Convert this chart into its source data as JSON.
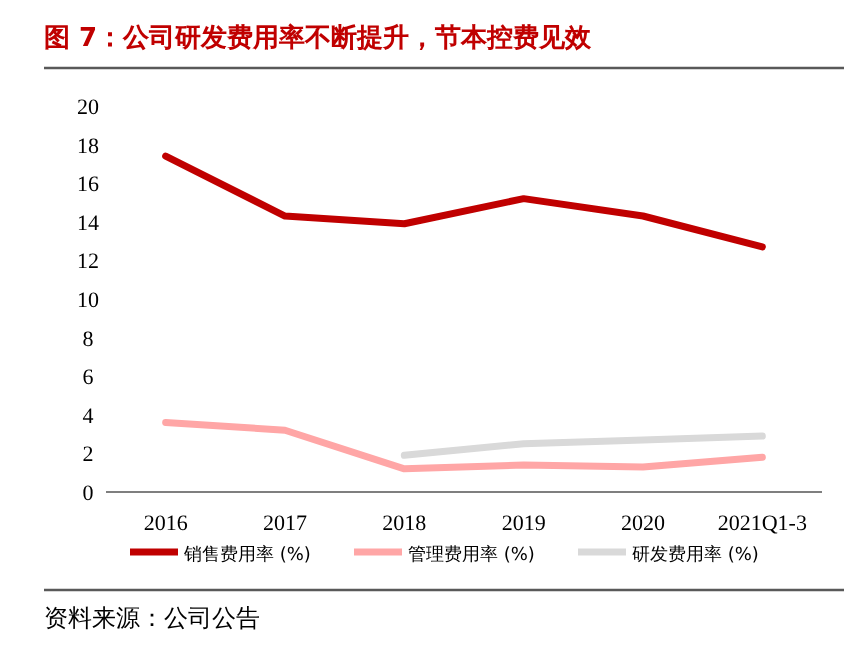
{
  "chart_data": {
    "type": "line",
    "title": "图 7：公司研发费用率不断提升，节本控费见效",
    "categories": [
      "2016",
      "2017",
      "2018",
      "2019",
      "2020",
      "2021Q1-3"
    ],
    "series": [
      {
        "name": "销售费用率 (%)",
        "color": "#c00000",
        "values": [
          17.4,
          14.3,
          13.9,
          15.2,
          14.3,
          12.7
        ]
      },
      {
        "name": "管理费用率 (%)",
        "color": "#ffa6a6",
        "values": [
          3.6,
          3.2,
          1.2,
          1.4,
          1.3,
          1.8
        ]
      },
      {
        "name": "研发费用率 (%)",
        "color": "#d9d9d9",
        "values": [
          null,
          null,
          1.9,
          2.5,
          2.7,
          2.9
        ]
      }
    ],
    "ylim": [
      0,
      20
    ],
    "yticks": [
      0,
      2,
      4,
      6,
      8,
      10,
      12,
      14,
      16,
      18,
      20
    ],
    "grid": false,
    "legend": "bottom",
    "marker": "none",
    "line_style": "solid",
    "annotations": [
      "资料来源：公司公告"
    ]
  }
}
